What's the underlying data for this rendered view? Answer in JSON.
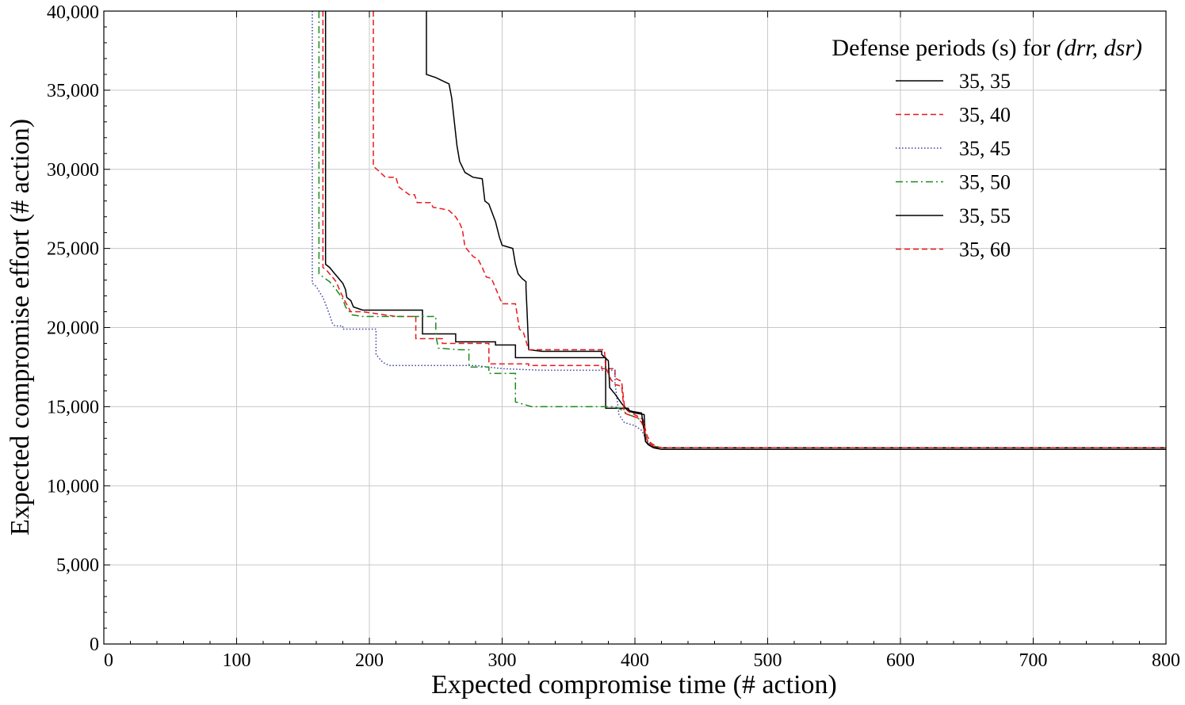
{
  "chart_data": {
    "type": "line",
    "title": "",
    "xlabel": "Expected compromise time (# action)",
    "ylabel": "Expected compromise effort (# action)",
    "xlim": [
      0,
      800
    ],
    "ylim": [
      0,
      40000
    ],
    "xticks": [
      0,
      100,
      200,
      300,
      400,
      500,
      600,
      700,
      800
    ],
    "yticks": [
      0,
      5000,
      10000,
      15000,
      20000,
      25000,
      30000,
      35000,
      40000
    ],
    "xtick_labels": [
      "0",
      "100",
      "200",
      "300",
      "400",
      "500",
      "600",
      "700",
      "800"
    ],
    "ytick_labels": [
      "0",
      "5,000",
      "10,000",
      "15,000",
      "20,000",
      "25,000",
      "30,000",
      "35,000",
      "40,000"
    ],
    "grid": true,
    "legend": {
      "title_prefix": "Defense periods (s) for ",
      "title_math": "(drr, dsr)",
      "placement": "top-right"
    },
    "series": [
      {
        "name": "35, 35",
        "color": "#000000",
        "style": "solid",
        "points": [
          [
            167,
            40000
          ],
          [
            167,
            24000
          ],
          [
            170,
            23800
          ],
          [
            172,
            23600
          ],
          [
            174,
            23400
          ],
          [
            176,
            23200
          ],
          [
            178,
            23000
          ],
          [
            180,
            22800
          ],
          [
            182,
            22400
          ],
          [
            183,
            21900
          ],
          [
            186,
            21700
          ],
          [
            188,
            21300
          ],
          [
            195,
            21100
          ],
          [
            220,
            21100
          ],
          [
            240,
            21100
          ],
          [
            240,
            19600
          ],
          [
            265,
            19600
          ],
          [
            265,
            19100
          ],
          [
            295,
            19100
          ],
          [
            295,
            18900
          ],
          [
            310,
            18900
          ],
          [
            310,
            18100
          ],
          [
            330,
            18100
          ],
          [
            355,
            18100
          ],
          [
            378,
            18100
          ],
          [
            378,
            14900
          ],
          [
            395,
            14900
          ],
          [
            396,
            14700
          ],
          [
            400,
            14600
          ],
          [
            407,
            14500
          ],
          [
            408,
            12800
          ],
          [
            410,
            12600
          ],
          [
            414,
            12400
          ],
          [
            420,
            12300
          ],
          [
            800,
            12300
          ]
        ]
      },
      {
        "name": "35, 40",
        "color": "#e8191c",
        "style": "dashed",
        "points": [
          [
            165,
            40000
          ],
          [
            165,
            23800
          ],
          [
            168,
            23600
          ],
          [
            172,
            23200
          ],
          [
            175,
            22900
          ],
          [
            178,
            22300
          ],
          [
            182,
            21600
          ],
          [
            186,
            21000
          ],
          [
            195,
            21000
          ],
          [
            220,
            20700
          ],
          [
            235,
            20700
          ],
          [
            235,
            19300
          ],
          [
            255,
            19300
          ],
          [
            255,
            19000
          ],
          [
            290,
            19000
          ],
          [
            290,
            17700
          ],
          [
            320,
            17700
          ],
          [
            320,
            17600
          ],
          [
            350,
            17600
          ],
          [
            370,
            17600
          ],
          [
            375,
            17600
          ],
          [
            375,
            17400
          ],
          [
            385,
            17400
          ],
          [
            385,
            16800
          ],
          [
            390,
            16600
          ],
          [
            392,
            15100
          ],
          [
            395,
            14700
          ],
          [
            402,
            14400
          ],
          [
            406,
            14200
          ],
          [
            409,
            13200
          ],
          [
            412,
            12700
          ],
          [
            416,
            12500
          ],
          [
            420,
            12400
          ],
          [
            800,
            12400
          ]
        ]
      },
      {
        "name": "35, 45",
        "color": "#3a3f9e",
        "style": "dotted",
        "points": [
          [
            157,
            40000
          ],
          [
            157,
            22800
          ],
          [
            160,
            22600
          ],
          [
            162,
            22300
          ],
          [
            165,
            21900
          ],
          [
            167,
            21500
          ],
          [
            170,
            20800
          ],
          [
            172,
            20300
          ],
          [
            174,
            20100
          ],
          [
            180,
            20100
          ],
          [
            180,
            19900
          ],
          [
            205,
            19900
          ],
          [
            205,
            18300
          ],
          [
            210,
            17800
          ],
          [
            215,
            17600
          ],
          [
            240,
            17600
          ],
          [
            280,
            17600
          ],
          [
            300,
            17400
          ],
          [
            330,
            17300
          ],
          [
            360,
            17300
          ],
          [
            375,
            17300
          ],
          [
            385,
            17300
          ],
          [
            385,
            16500
          ],
          [
            388,
            14500
          ],
          [
            392,
            14000
          ],
          [
            400,
            13800
          ],
          [
            405,
            13500
          ],
          [
            408,
            13000
          ],
          [
            412,
            12600
          ],
          [
            416,
            12450
          ],
          [
            420,
            12400
          ],
          [
            800,
            12400
          ]
        ]
      },
      {
        "name": "35, 50",
        "color": "#1c8a1c",
        "style": "dashdot",
        "points": [
          [
            162,
            40000
          ],
          [
            162,
            23400
          ],
          [
            165,
            23200
          ],
          [
            170,
            22900
          ],
          [
            175,
            22400
          ],
          [
            180,
            21800
          ],
          [
            182,
            21300
          ],
          [
            187,
            20800
          ],
          [
            195,
            20700
          ],
          [
            240,
            20700
          ],
          [
            250,
            20700
          ],
          [
            250,
            19500
          ],
          [
            252,
            18700
          ],
          [
            268,
            18600
          ],
          [
            275,
            18600
          ],
          [
            275,
            17500
          ],
          [
            290,
            17500
          ],
          [
            290,
            17100
          ],
          [
            310,
            17100
          ],
          [
            310,
            15300
          ],
          [
            322,
            15000
          ],
          [
            350,
            15000
          ],
          [
            385,
            15000
          ],
          [
            390,
            14800
          ],
          [
            395,
            14500
          ],
          [
            402,
            14300
          ],
          [
            406,
            14000
          ],
          [
            408,
            13200
          ],
          [
            410,
            12700
          ],
          [
            415,
            12500
          ],
          [
            420,
            12400
          ],
          [
            800,
            12400
          ]
        ]
      },
      {
        "name": "35, 55",
        "color": "#000000",
        "style": "solid",
        "points": [
          [
            243,
            40000
          ],
          [
            243,
            36000
          ],
          [
            250,
            35800
          ],
          [
            255,
            35600
          ],
          [
            260,
            35400
          ],
          [
            262,
            34500
          ],
          [
            264,
            33000
          ],
          [
            266,
            31500
          ],
          [
            268,
            30500
          ],
          [
            272,
            29800
          ],
          [
            278,
            29500
          ],
          [
            285,
            29400
          ],
          [
            287,
            28000
          ],
          [
            290,
            27800
          ],
          [
            295,
            26700
          ],
          [
            298,
            25700
          ],
          [
            300,
            25200
          ],
          [
            308,
            25000
          ],
          [
            310,
            24000
          ],
          [
            312,
            23400
          ],
          [
            315,
            23100
          ],
          [
            318,
            22900
          ],
          [
            318,
            22500
          ],
          [
            319,
            20600
          ],
          [
            320,
            18600
          ],
          [
            330,
            18500
          ],
          [
            355,
            18500
          ],
          [
            375,
            18500
          ],
          [
            375,
            18300
          ],
          [
            380,
            17900
          ],
          [
            381,
            16200
          ],
          [
            385,
            15800
          ],
          [
            390,
            15200
          ],
          [
            394,
            14800
          ],
          [
            398,
            14700
          ],
          [
            405,
            14600
          ],
          [
            408,
            12800
          ],
          [
            412,
            12500
          ],
          [
            416,
            12400
          ],
          [
            800,
            12400
          ]
        ]
      },
      {
        "name": "35, 60",
        "color": "#e8191c",
        "style": "dashed",
        "points": [
          [
            203,
            40000
          ],
          [
            203,
            30200
          ],
          [
            207,
            29900
          ],
          [
            212,
            29500
          ],
          [
            220,
            29500
          ],
          [
            222,
            28900
          ],
          [
            225,
            28700
          ],
          [
            230,
            28400
          ],
          [
            234,
            28400
          ],
          [
            236,
            27900
          ],
          [
            246,
            27900
          ],
          [
            248,
            27600
          ],
          [
            255,
            27500
          ],
          [
            260,
            27400
          ],
          [
            265,
            27000
          ],
          [
            268,
            26600
          ],
          [
            270,
            26200
          ],
          [
            272,
            25100
          ],
          [
            278,
            24500
          ],
          [
            282,
            24300
          ],
          [
            285,
            23800
          ],
          [
            288,
            23200
          ],
          [
            292,
            23100
          ],
          [
            296,
            22300
          ],
          [
            300,
            21500
          ],
          [
            310,
            21500
          ],
          [
            313,
            19900
          ],
          [
            316,
            19700
          ],
          [
            320,
            18600
          ],
          [
            335,
            18600
          ],
          [
            355,
            18600
          ],
          [
            377,
            18600
          ],
          [
            378,
            17500
          ],
          [
            382,
            16700
          ],
          [
            385,
            16400
          ],
          [
            390,
            16300
          ],
          [
            392,
            14600
          ],
          [
            398,
            14400
          ],
          [
            402,
            14300
          ],
          [
            405,
            14000
          ],
          [
            406,
            13800
          ],
          [
            408,
            13200
          ],
          [
            410,
            12700
          ],
          [
            414,
            12500
          ],
          [
            418,
            12400
          ],
          [
            800,
            12400
          ]
        ]
      }
    ]
  }
}
